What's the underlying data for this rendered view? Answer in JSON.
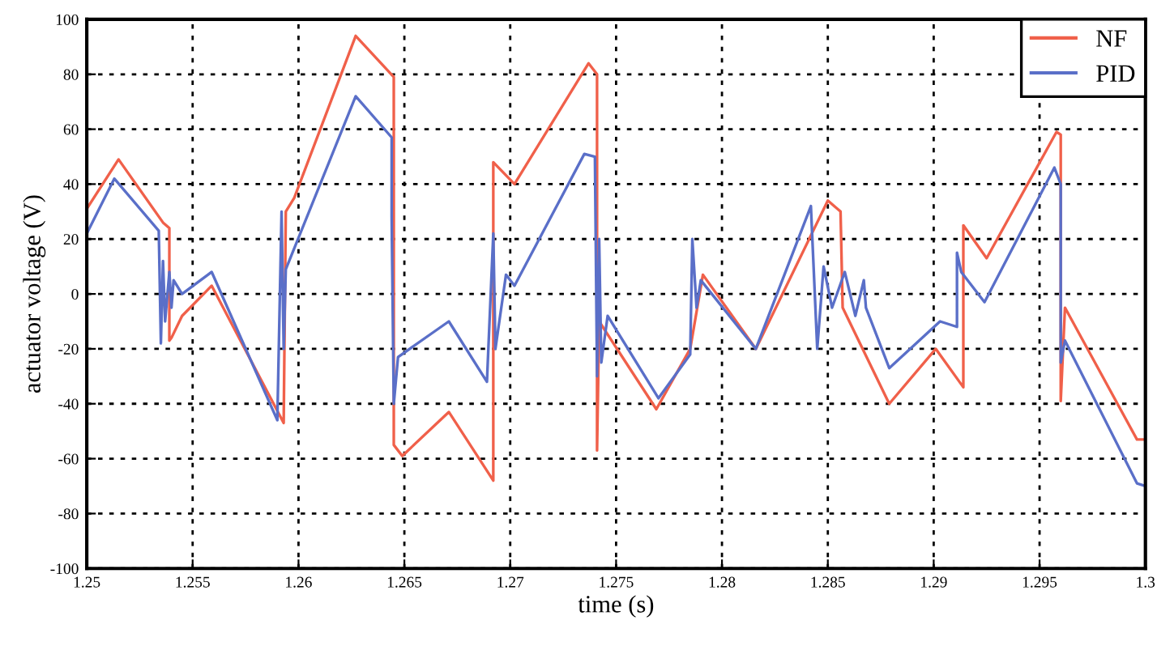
{
  "chart_data": {
    "type": "line",
    "xlabel": "time (s)",
    "ylabel": "actuator voltage (V)",
    "xlim": [
      1.25,
      1.3
    ],
    "ylim": [
      -100,
      100
    ],
    "xticks": [
      1.25,
      1.255,
      1.26,
      1.265,
      1.27,
      1.275,
      1.28,
      1.285,
      1.29,
      1.295,
      1.3
    ],
    "yticks": [
      -100,
      -80,
      -60,
      -40,
      -20,
      0,
      20,
      40,
      60,
      80,
      100
    ],
    "grid": true,
    "legend": "top right",
    "line_style": "solid",
    "marker": "none",
    "series": [
      {
        "name": "NF",
        "color": "#f0604a",
        "x": [
          1.25,
          1.2515,
          1.2536,
          1.2539,
          1.2539,
          1.254,
          1.2545,
          1.2559,
          1.2593,
          1.2594,
          1.2598,
          1.2627,
          1.2645,
          1.2645,
          1.2649,
          1.2671,
          1.2692,
          1.2692,
          1.2702,
          1.2737,
          1.2741,
          1.2741,
          1.2742,
          1.2769,
          1.2785,
          1.2791,
          1.2816,
          1.285,
          1.2856,
          1.2857,
          1.2879,
          1.2901,
          1.2914,
          1.2914,
          1.2925,
          1.2958,
          1.296,
          1.296,
          1.2962,
          1.2996,
          1.3
        ],
        "values": [
          31,
          49,
          26,
          24,
          -17,
          -16,
          -8,
          3,
          -47,
          30,
          35,
          94,
          79,
          -55,
          -59,
          -43,
          -68,
          48,
          40,
          84,
          80,
          -57,
          -10,
          -42,
          -20,
          7,
          -20,
          34,
          30,
          -5,
          -40,
          -20,
          -34,
          25,
          13,
          59,
          58,
          -39,
          -5,
          -53,
          -53
        ]
      },
      {
        "name": "PID",
        "color": "#5a6fc8",
        "x": [
          1.25,
          1.2513,
          1.2534,
          1.2535,
          1.2536,
          1.2537,
          1.2539,
          1.254,
          1.2541,
          1.2545,
          1.2559,
          1.259,
          1.2592,
          1.2593,
          1.2594,
          1.2627,
          1.2644,
          1.2644,
          1.2645,
          1.2647,
          1.2671,
          1.2689,
          1.2692,
          1.2693,
          1.2698,
          1.2702,
          1.2735,
          1.274,
          1.2741,
          1.2742,
          1.2743,
          1.2746,
          1.277,
          1.2785,
          1.2786,
          1.2788,
          1.279,
          1.2816,
          1.2842,
          1.2845,
          1.2848,
          1.2852,
          1.2858,
          1.2863,
          1.2867,
          1.2868,
          1.2879,
          1.2903,
          1.2911,
          1.2911,
          1.2913,
          1.2924,
          1.2957,
          1.296,
          1.296,
          1.2962,
          1.2996,
          1.3
        ],
        "values": [
          22,
          42,
          23,
          -18,
          12,
          -10,
          8,
          -5,
          5,
          0,
          8,
          -46,
          30,
          -20,
          9,
          72,
          57,
          28,
          -40,
          -23,
          -10,
          -32,
          22,
          -20,
          7,
          3,
          51,
          50,
          -30,
          20,
          -25,
          -8,
          -38,
          -22,
          20,
          -5,
          5,
          -20,
          32,
          -20,
          10,
          -5,
          8,
          -8,
          5,
          -5,
          -27,
          -10,
          -12,
          15,
          8,
          -3,
          46,
          40,
          -25,
          -17,
          -69,
          -70
        ]
      }
    ]
  }
}
